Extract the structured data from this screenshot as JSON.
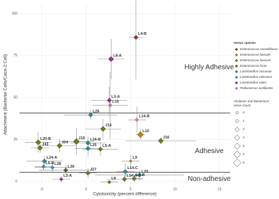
{
  "chart_data": {
    "type": "scatter",
    "x_label": "Cytotoxicity (percent difference)",
    "y_label": "Attachment (Bacterial Cells/Caco-2 Cell)",
    "xlim": [
      -7.5,
      16.2
    ],
    "ylim": [
      -3,
      106
    ],
    "xticks": [
      -5,
      0,
      5,
      10,
      15
    ],
    "yticks": [
      0,
      25,
      50,
      75,
      100
    ],
    "grid": true,
    "thresholds": [
      40.8,
      5.4
    ],
    "regions": [
      {
        "label": "Highly Adhesive",
        "y": 68
      },
      {
        "label": "Adhesive",
        "y": 18
      },
      {
        "label": "Non-adhesive",
        "y": 1.5
      }
    ],
    "legend_species_title": "Genus species",
    "species": [
      {
        "name": "Enterococcus casseliflavus",
        "color": "#a0302a"
      },
      {
        "name": "Enterococcus faecalis",
        "color": "#b8860b"
      },
      {
        "name": "Enterococcus faecium",
        "color": "#6b7d1a"
      },
      {
        "name": "Enterococcus hirae",
        "color": "#4f6b2f"
      },
      {
        "name": "Lactobacillus mucosae",
        "color": "#1e8f8f"
      },
      {
        "name": "Lactobacillus salivarius",
        "color": "#3a8fd0"
      },
      {
        "name": "Lactobacillus sakei",
        "color": "#9b2d8f"
      },
      {
        "name": "Pediococcus acidilactici",
        "color": "#e07aa8"
      }
    ],
    "legend_size_title": [
      "Virulence and Bacteriocin",
      "Gene Count"
    ],
    "gene_counts": [
      0,
      1,
      2,
      3,
      4,
      5,
      6
    ],
    "points": [
      {
        "label": "L4-B",
        "x": 5.6,
        "y": 85.8,
        "xerr": 0.8,
        "yerr": 25,
        "species": 0,
        "genes": 2
      },
      {
        "label": "L8-A",
        "x": 2.8,
        "y": 72.9,
        "xerr": 1.5,
        "yerr": 12,
        "species": 6,
        "genes": 3
      },
      {
        "label": "L3-A",
        "x": 2.6,
        "y": 48.3,
        "xerr": 2,
        "yerr": 8,
        "species": 6,
        "genes": 2
      },
      {
        "label": "L15",
        "x": 2.7,
        "y": 45.4,
        "xerr": 2,
        "yerr": 20,
        "species": 7,
        "genes": 1
      },
      {
        "label": "L14-B",
        "x": 5.7,
        "y": 36.7,
        "xerr": 1,
        "yerr": 8,
        "species": 7,
        "genes": 1
      },
      {
        "label": "L26",
        "x": 0.5,
        "y": 39.6,
        "xerr": 3,
        "yerr": 3,
        "species": 4,
        "genes": 2
      },
      {
        "label": "J14",
        "x": 1.9,
        "y": 31.3,
        "xerr": 2,
        "yerr": 6,
        "species": 2,
        "genes": 3
      },
      {
        "label": "L10",
        "x": 6.1,
        "y": 27.9,
        "xerr": 0.5,
        "yerr": 3,
        "species": 1,
        "genes": 4
      },
      {
        "label": "J16",
        "x": 8.4,
        "y": 24.2,
        "xerr": 4,
        "yerr": 2,
        "species": 2,
        "genes": 3
      },
      {
        "label": "L20-B",
        "x": -5.4,
        "y": 23.3,
        "xerr": 1.5,
        "yerr": 6,
        "species": 2,
        "genes": 3
      },
      {
        "label": "J19",
        "x": -1.1,
        "y": 23.8,
        "xerr": 2,
        "yerr": 8,
        "species": 2,
        "genes": 4
      },
      {
        "label": "L24-B",
        "x": 0.2,
        "y": 22.9,
        "xerr": 2,
        "yerr": 4,
        "species": 4,
        "genes": 2
      },
      {
        "label": "J43",
        "x": -5.2,
        "y": 20,
        "xerr": 1,
        "yerr": 3,
        "species": 2,
        "genes": 3
      },
      {
        "label": "J24",
        "x": -3,
        "y": 21.3,
        "xerr": 2,
        "yerr": 4,
        "species": 2,
        "genes": 3
      },
      {
        "label": "L25",
        "x": 0.2,
        "y": 19.6,
        "xerr": 1.5,
        "yerr": 5,
        "species": 4,
        "genes": 2
      },
      {
        "label": "L5-A",
        "x": 1.6,
        "y": 19.2,
        "xerr": 2,
        "yerr": 4,
        "species": 2,
        "genes": 2
      },
      {
        "label": "L9",
        "x": 5,
        "y": 12.1,
        "xerr": 1,
        "yerr": 4,
        "species": 1,
        "genes": 0
      },
      {
        "label": "L24-A",
        "x": -4.7,
        "y": 12.1,
        "xerr": 2,
        "yerr": 3,
        "species": 4,
        "genes": 2
      },
      {
        "label": "L6-B",
        "x": -4.8,
        "y": 8.8,
        "xerr": 1,
        "yerr": 2,
        "species": 5,
        "genes": 1
      },
      {
        "label": "L28",
        "x": -3.8,
        "y": 8.3,
        "xerr": 2,
        "yerr": 3,
        "species": 5,
        "genes": 1
      },
      {
        "label": "L30",
        "x": -2.3,
        "y": 6.7,
        "xerr": 3,
        "yerr": 3,
        "species": 3,
        "genes": 2
      },
      {
        "label": "J27",
        "x": 0.2,
        "y": 5,
        "xerr": 1,
        "yerr": 3,
        "species": 2,
        "genes": 2
      },
      {
        "label": "L14-C",
        "x": 4.4,
        "y": 5.8,
        "xerr": 1,
        "yerr": 5,
        "species": 4,
        "genes": 2
      },
      {
        "label": "L20",
        "x": 6,
        "y": 3.8,
        "xerr": 5,
        "yerr": 3,
        "species": 4,
        "genes": 2
      },
      {
        "label": "L2-A",
        "x": -2.8,
        "y": 1.3,
        "xerr": 1,
        "yerr": 2,
        "species": 6,
        "genes": 1
      },
      {
        "label": "L14-A",
        "x": 4.3,
        "y": 1.3,
        "xerr": 2,
        "yerr": 2,
        "species": 2,
        "genes": 2
      },
      {
        "label": "L2-B",
        "x": 5.4,
        "y": 1.7,
        "xerr": 1,
        "yerr": 2,
        "species": 2,
        "genes": 2
      },
      {
        "label": "L8",
        "x": 2.6,
        "y": -0.4,
        "xerr": 1,
        "yerr": 1,
        "species": 2,
        "genes": 1
      }
    ]
  }
}
